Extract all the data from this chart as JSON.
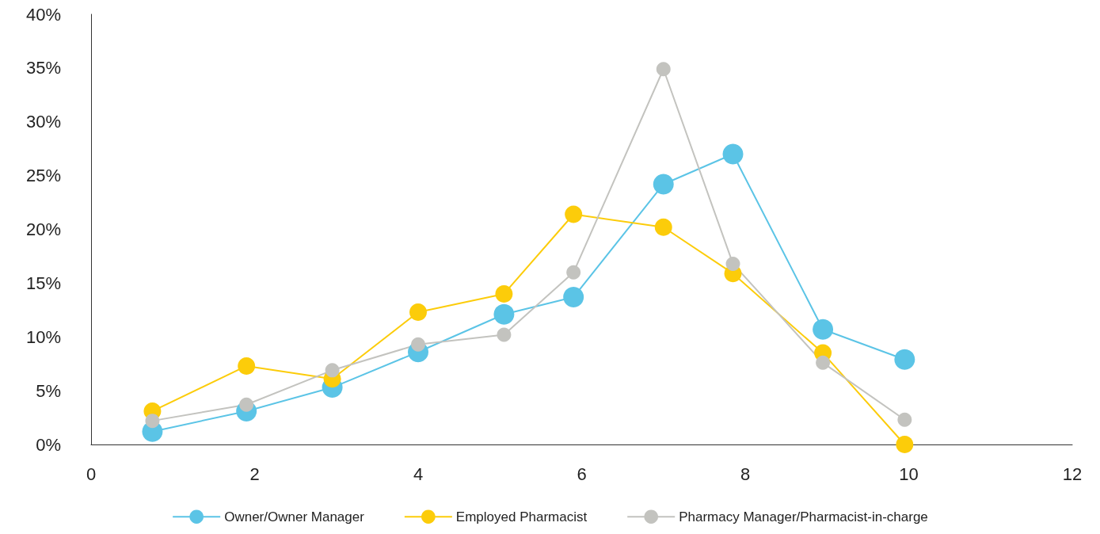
{
  "chart_data": {
    "type": "line",
    "marker": "circle",
    "grid": false,
    "legend": "bottom",
    "x": [
      0.75,
      1.9,
      2.95,
      4,
      5.05,
      5.9,
      7,
      7.85,
      8.95,
      9.95
    ],
    "xlim": [
      0,
      12
    ],
    "xticks": [
      0,
      2,
      4,
      6,
      8,
      10,
      12
    ],
    "ylim": [
      0,
      40
    ],
    "yticks": [
      {
        "value": 0,
        "label": "0%"
      },
      {
        "value": 5,
        "label": "5%"
      },
      {
        "value": 10,
        "label": "10%"
      },
      {
        "value": 15,
        "label": "15%"
      },
      {
        "value": 20,
        "label": "20%"
      },
      {
        "value": 25,
        "label": "25%"
      },
      {
        "value": 30,
        "label": "30%"
      },
      {
        "value": 35,
        "label": "35%"
      },
      {
        "value": 40,
        "label": "40%"
      }
    ],
    "series": [
      {
        "name": "Owner/Owner Manager",
        "color": "#5bc4e6",
        "values": [
          1.2,
          3.1,
          5.3,
          8.6,
          12.1,
          13.7,
          24.2,
          27.0,
          10.7,
          7.9
        ]
      },
      {
        "name": "Employed Pharmacist",
        "color": "#fccc0a",
        "values": [
          3.1,
          7.3,
          6.1,
          12.3,
          14.0,
          21.4,
          20.2,
          15.9,
          8.5,
          0
        ]
      },
      {
        "name": "Pharmacy Manager/Pharmacist-in-charge",
        "color": "#c3c3bf",
        "values": [
          2.2,
          3.7,
          6.9,
          9.3,
          10.2,
          16.0,
          34.9,
          16.8,
          7.6,
          2.3
        ]
      }
    ]
  }
}
